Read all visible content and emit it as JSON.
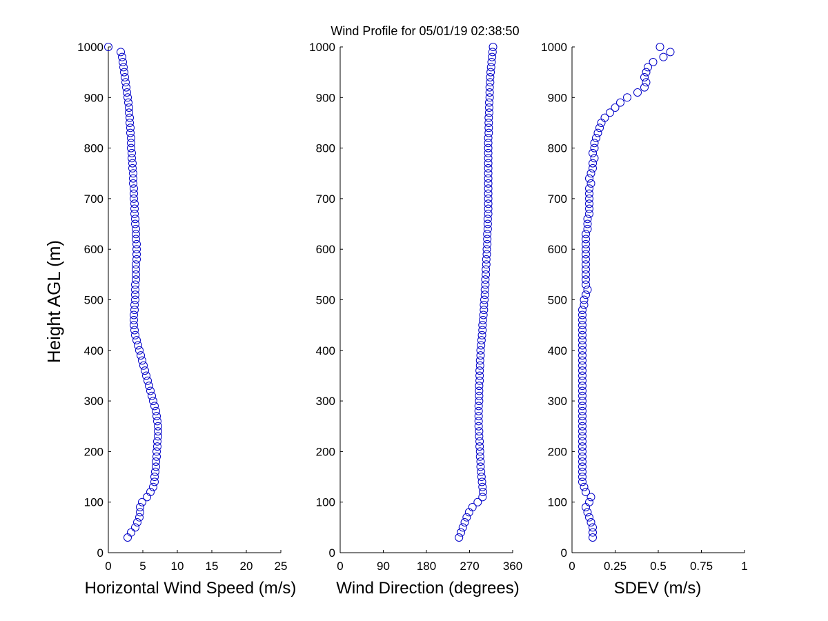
{
  "title": "Wind Profile for  05/01/19 02:38:50",
  "heights": [
    30,
    40,
    50,
    60,
    70,
    80,
    90,
    100,
    110,
    120,
    130,
    140,
    150,
    160,
    170,
    180,
    190,
    200,
    210,
    220,
    230,
    240,
    250,
    260,
    270,
    280,
    290,
    300,
    310,
    320,
    330,
    340,
    350,
    360,
    370,
    380,
    390,
    400,
    410,
    420,
    430,
    440,
    450,
    460,
    470,
    480,
    490,
    500,
    510,
    520,
    530,
    540,
    550,
    560,
    570,
    580,
    590,
    600,
    610,
    620,
    630,
    640,
    650,
    660,
    670,
    680,
    690,
    700,
    710,
    720,
    730,
    740,
    750,
    760,
    770,
    780,
    790,
    800,
    810,
    820,
    830,
    840,
    850,
    860,
    870,
    880,
    890,
    900,
    910,
    920,
    930,
    940,
    950,
    960,
    970,
    980,
    990,
    1000
  ],
  "chart_data": [
    {
      "type": "scatter",
      "title": "",
      "xlabel": "Horizontal Wind Speed (m/s)",
      "ylabel": "Height AGL (m)",
      "xlim": [
        0,
        25
      ],
      "ylim": [
        0,
        1000
      ],
      "xticks": [
        "0",
        "5",
        "10",
        "15",
        "20",
        "25"
      ],
      "yticks": [
        "0",
        "100",
        "200",
        "300",
        "400",
        "500",
        "600",
        "700",
        "800",
        "900",
        "1000"
      ],
      "series": [
        {
          "name": "Horizontal Wind Speed",
          "values": [
            2.8,
            3.3,
            3.9,
            4.2,
            4.5,
            4.6,
            4.6,
            4.9,
            5.6,
            6.1,
            6.5,
            6.7,
            6.7,
            6.8,
            6.9,
            6.9,
            7.0,
            7.0,
            7.1,
            7.1,
            7.2,
            7.2,
            7.2,
            7.1,
            7.0,
            6.9,
            6.7,
            6.5,
            6.3,
            6.1,
            5.9,
            5.7,
            5.5,
            5.3,
            5.1,
            4.9,
            4.7,
            4.5,
            4.3,
            4.1,
            3.9,
            3.8,
            3.7,
            3.7,
            3.7,
            3.8,
            3.8,
            3.9,
            3.9,
            3.9,
            3.9,
            4.0,
            4.0,
            4.0,
            4.0,
            4.1,
            4.1,
            4.1,
            4.1,
            4.0,
            4.0,
            4.0,
            3.9,
            3.9,
            3.8,
            3.8,
            3.8,
            3.7,
            3.7,
            3.7,
            3.6,
            3.6,
            3.6,
            3.5,
            3.5,
            3.4,
            3.4,
            3.3,
            3.3,
            3.3,
            3.2,
            3.2,
            3.1,
            3.1,
            3.0,
            3.0,
            2.9,
            2.8,
            2.7,
            2.6,
            2.5,
            2.4,
            2.3,
            2.2,
            2.1,
            2.0,
            1.8,
            0.0
          ]
        }
      ]
    },
    {
      "type": "scatter",
      "title": "",
      "xlabel": "Wind Direction (degrees)",
      "ylabel": "",
      "xlim": [
        0,
        360
      ],
      "ylim": [
        0,
        1000
      ],
      "xticks": [
        "0",
        "90",
        "180",
        "270",
        "360"
      ],
      "yticks": [
        "0",
        "100",
        "200",
        "300",
        "400",
        "500",
        "600",
        "700",
        "800",
        "900",
        "1000"
      ],
      "series": [
        {
          "name": "Wind Direction",
          "values": [
            248,
            252,
            256,
            260,
            264,
            269,
            276,
            287,
            297,
            298,
            297,
            296,
            295,
            294,
            293,
            293,
            292,
            292,
            291,
            291,
            290,
            290,
            289,
            289,
            289,
            289,
            289,
            290,
            290,
            290,
            290,
            291,
            291,
            291,
            292,
            292,
            293,
            293,
            294,
            295,
            296,
            297,
            297,
            298,
            299,
            300,
            300,
            301,
            302,
            302,
            303,
            303,
            304,
            304,
            305,
            305,
            306,
            306,
            307,
            307,
            307,
            308,
            308,
            308,
            309,
            309,
            309,
            309,
            309,
            309,
            309,
            309,
            309,
            309,
            309,
            309,
            309,
            309,
            309,
            309,
            310,
            310,
            310,
            310,
            311,
            311,
            311,
            312,
            312,
            312,
            313,
            313,
            314,
            315,
            316,
            317,
            318,
            319
          ]
        }
      ]
    },
    {
      "type": "scatter",
      "title": "",
      "xlabel": "SDEV  (m/s)",
      "ylabel": "",
      "xlim": [
        0,
        1
      ],
      "ylim": [
        0,
        1000
      ],
      "xticks": [
        "0",
        "0.25",
        "0.5",
        "0.75",
        "1"
      ],
      "yticks": [
        "0",
        "100",
        "200",
        "300",
        "400",
        "500",
        "600",
        "700",
        "800",
        "900",
        "1000"
      ],
      "series": [
        {
          "name": "SDEV",
          "values": [
            0.12,
            0.12,
            0.12,
            0.11,
            0.1,
            0.09,
            0.08,
            0.1,
            0.11,
            0.08,
            0.07,
            0.06,
            0.06,
            0.06,
            0.06,
            0.06,
            0.06,
            0.06,
            0.06,
            0.06,
            0.06,
            0.06,
            0.06,
            0.06,
            0.06,
            0.06,
            0.06,
            0.06,
            0.06,
            0.06,
            0.06,
            0.06,
            0.06,
            0.06,
            0.06,
            0.06,
            0.06,
            0.06,
            0.06,
            0.06,
            0.06,
            0.06,
            0.06,
            0.06,
            0.06,
            0.06,
            0.07,
            0.07,
            0.08,
            0.09,
            0.08,
            0.08,
            0.08,
            0.08,
            0.08,
            0.08,
            0.08,
            0.08,
            0.08,
            0.08,
            0.08,
            0.09,
            0.09,
            0.09,
            0.1,
            0.1,
            0.1,
            0.1,
            0.1,
            0.1,
            0.11,
            0.1,
            0.11,
            0.12,
            0.12,
            0.13,
            0.12,
            0.13,
            0.13,
            0.14,
            0.15,
            0.16,
            0.17,
            0.19,
            0.22,
            0.25,
            0.28,
            0.32,
            0.38,
            0.42,
            0.43,
            0.42,
            0.43,
            0.44,
            0.47,
            0.53,
            0.57,
            0.51
          ]
        }
      ]
    }
  ]
}
